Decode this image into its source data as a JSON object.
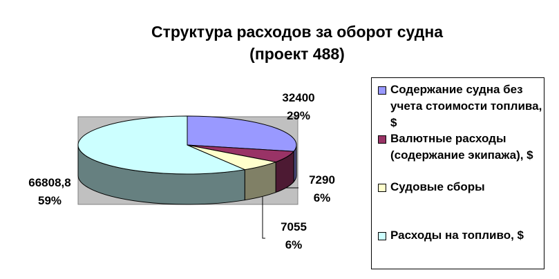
{
  "chart_data": {
    "type": "pie",
    "title": "Структура расходов за оборот судна",
    "subtitle": "(проект 488)",
    "three_d": true,
    "legend_position": "right",
    "slices": [
      {
        "name": "Содержание судна без учета стоимости топлива, $",
        "value": 32400,
        "percent_label": "29%",
        "value_label": "32400",
        "color": "#9999ff"
      },
      {
        "name": "Валютные расходы (содержание экипажа), $",
        "value": 7290,
        "percent_label": "6%",
        "value_label": "7290",
        "color": "#993366"
      },
      {
        "name": "Судовые сборы",
        "value": 7055,
        "percent_label": "6%",
        "value_label": "7055",
        "color": "#ffffcc"
      },
      {
        "name": "Расходы на топливо, $",
        "value": 66808.8,
        "percent_label": "59%",
        "value_label": "66808,8",
        "color": "#ccffff"
      }
    ]
  }
}
